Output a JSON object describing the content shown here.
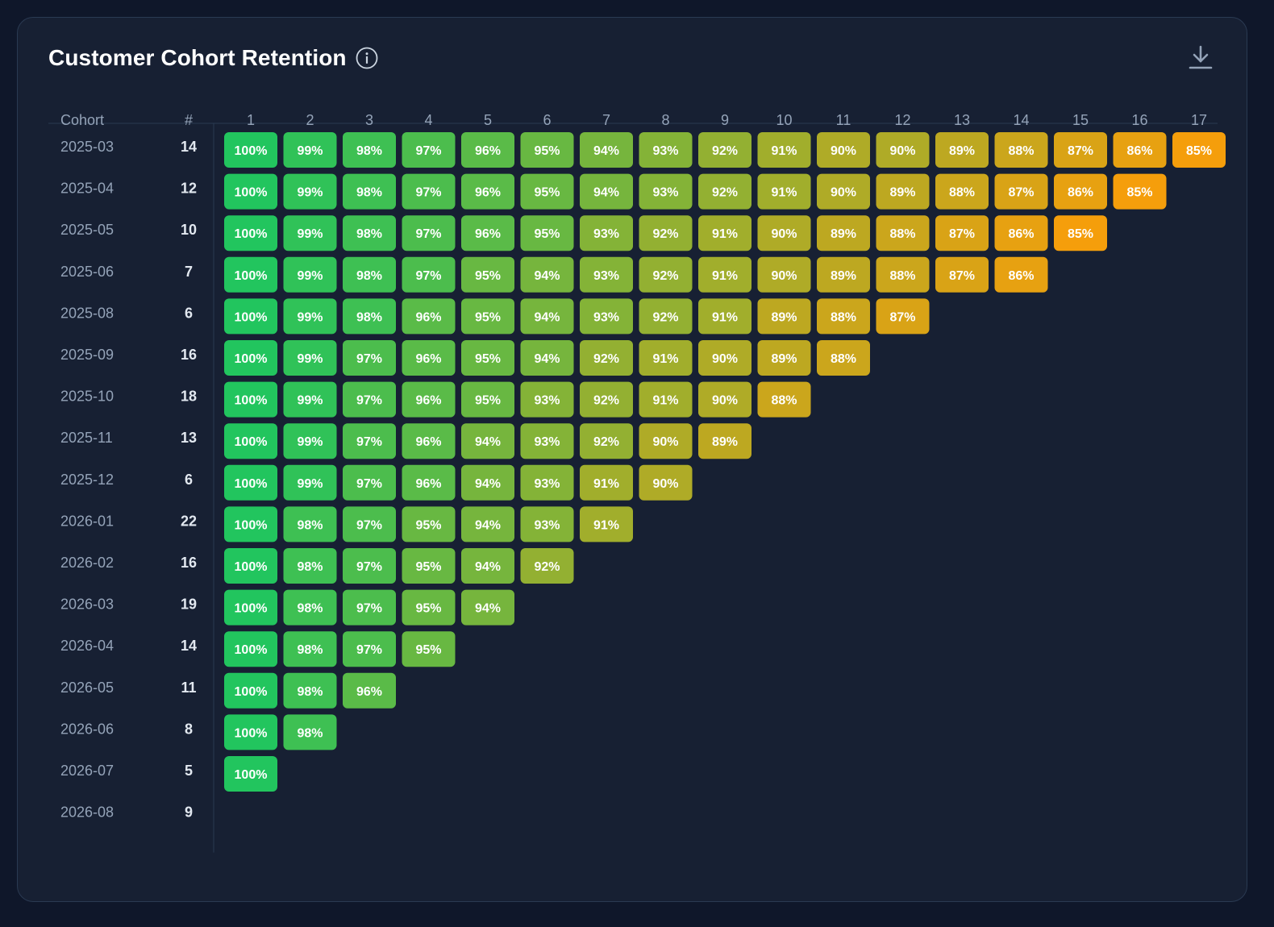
{
  "header": {
    "title": "Customer Cohort Retention",
    "info_icon": "info-icon",
    "download_icon": "download-icon"
  },
  "colors": {
    "background": "#0f172a",
    "card": "#172033",
    "high": "#22c55e",
    "low": "#f59e0b"
  },
  "chart_data": {
    "type": "heatmap",
    "title": "Customer Cohort Retention",
    "columns_header": {
      "cohort": "Cohort",
      "size": "#"
    },
    "periods": [
      "1",
      "2",
      "3",
      "4",
      "5",
      "6",
      "7",
      "8",
      "9",
      "10",
      "11",
      "12",
      "13",
      "14",
      "15",
      "16",
      "17"
    ],
    "cohorts": [
      {
        "cohort": "2025-03",
        "size": "14",
        "values": [
          100,
          99,
          98,
          97,
          96,
          95,
          94,
          93,
          92,
          91,
          90,
          90,
          89,
          88,
          87,
          86,
          85
        ]
      },
      {
        "cohort": "2025-04",
        "size": "12",
        "values": [
          100,
          99,
          98,
          97,
          96,
          95,
          94,
          93,
          92,
          91,
          90,
          89,
          88,
          87,
          86,
          85
        ]
      },
      {
        "cohort": "2025-05",
        "size": "10",
        "values": [
          100,
          99,
          98,
          97,
          96,
          95,
          93,
          92,
          91,
          90,
          89,
          88,
          87,
          86,
          85
        ]
      },
      {
        "cohort": "2025-06",
        "size": "7",
        "values": [
          100,
          99,
          98,
          97,
          95,
          94,
          93,
          92,
          91,
          90,
          89,
          88,
          87,
          86
        ]
      },
      {
        "cohort": "2025-08",
        "size": "6",
        "values": [
          100,
          99,
          98,
          96,
          95,
          94,
          93,
          92,
          91,
          89,
          88,
          87
        ]
      },
      {
        "cohort": "2025-09",
        "size": "16",
        "values": [
          100,
          99,
          97,
          96,
          95,
          94,
          92,
          91,
          90,
          89,
          88
        ]
      },
      {
        "cohort": "2025-10",
        "size": "18",
        "values": [
          100,
          99,
          97,
          96,
          95,
          93,
          92,
          91,
          90,
          88
        ]
      },
      {
        "cohort": "2025-11",
        "size": "13",
        "values": [
          100,
          99,
          97,
          96,
          94,
          93,
          92,
          90,
          89
        ]
      },
      {
        "cohort": "2025-12",
        "size": "6",
        "values": [
          100,
          99,
          97,
          96,
          94,
          93,
          91,
          90
        ]
      },
      {
        "cohort": "2026-01",
        "size": "22",
        "values": [
          100,
          98,
          97,
          95,
          94,
          93,
          91
        ]
      },
      {
        "cohort": "2026-02",
        "size": "16",
        "values": [
          100,
          98,
          97,
          95,
          94,
          92
        ]
      },
      {
        "cohort": "2026-03",
        "size": "19",
        "values": [
          100,
          98,
          97,
          95,
          94
        ]
      },
      {
        "cohort": "2026-04",
        "size": "14",
        "values": [
          100,
          98,
          97,
          95
        ]
      },
      {
        "cohort": "2026-05",
        "size": "11",
        "values": [
          100,
          98,
          96
        ]
      },
      {
        "cohort": "2026-06",
        "size": "8",
        "values": [
          100,
          98
        ]
      },
      {
        "cohort": "2026-07",
        "size": "5",
        "values": [
          100
        ]
      },
      {
        "cohort": "2026-08",
        "size": "9",
        "values": []
      }
    ],
    "value_suffix": "%",
    "color_scale": {
      "min_value": 85,
      "max_value": 100,
      "min_color": "#f59e0b",
      "max_color": "#22c55e"
    }
  }
}
